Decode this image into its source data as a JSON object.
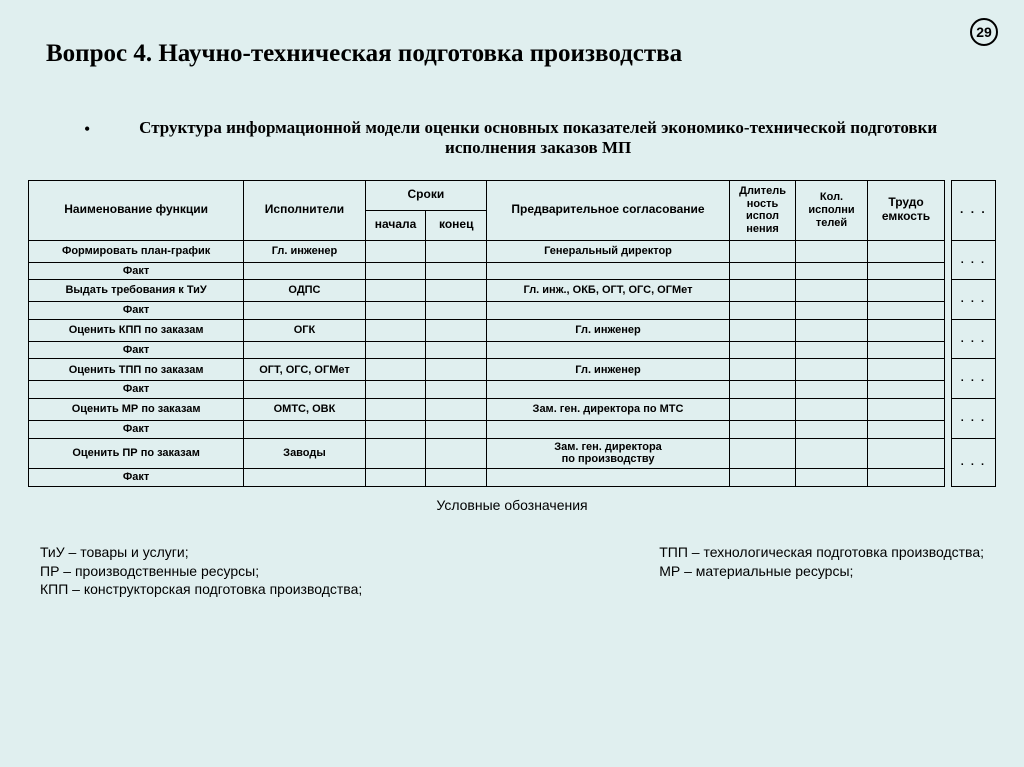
{
  "page_number": "29",
  "title": "Вопрос 4.  Научно-техническая подготовка производства",
  "subtitle": "Структура информационной модели оценки основных показателей экономико-технической подготовки  исполнения заказов МП",
  "headers": {
    "name": "Наименование функции",
    "executors": "Исполнители",
    "terms": "Сроки",
    "start": "начала",
    "end": "конец",
    "approval": "Предварительное согласование",
    "duration": "Длитель\nность\nиспол\nнения",
    "count": "Кол.\nисполни\nтелей",
    "labor": "Трудо\nемкость",
    "ellipsis": ". . ."
  },
  "fact_label": "Факт",
  "ellipsis": ". . .",
  "rows": [
    {
      "name": "Формировать план-график",
      "exec": "Гл. инженер",
      "appr": "Генеральный директор"
    },
    {
      "name": "Выдать требования к ТиУ",
      "exec": "ОДПС",
      "appr": "Гл. инж., ОКБ, ОГТ, ОГС, ОГМет"
    },
    {
      "name": "Оценить КПП по заказам",
      "exec": "ОГК",
      "appr": "Гл. инженер"
    },
    {
      "name": "Оценить ТПП по заказам",
      "exec": "ОГТ, ОГС, ОГМет",
      "appr": "Гл. инженер"
    },
    {
      "name": "Оценить МР по заказам",
      "exec": "ОМТС, ОВК",
      "appr": "Зам. ген. директора по МТС"
    },
    {
      "name": "Оценить ПР по заказам",
      "exec": "Заводы",
      "appr": "Зам. ген. директора\nпо производству"
    }
  ],
  "caption": "Условные обозначения",
  "legend_left": [
    "ТиУ – товары и услуги;",
    "ПР – производственные ресурсы;",
    "КПП – конструкторская подготовка производства;"
  ],
  "legend_right": [
    "ТПП – технологическая подготовка производства;",
    "МР – материальные ресурсы;"
  ],
  "col_widths": {
    "name": "195",
    "exec": "110",
    "start": "55",
    "end": "55",
    "appr": "220",
    "dur": "60",
    "cnt": "65",
    "labor": "70",
    "gap": "6",
    "ell": "40"
  }
}
